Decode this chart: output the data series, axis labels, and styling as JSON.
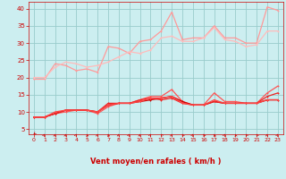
{
  "background_color": "#cceef0",
  "grid_color": "#99cccc",
  "xlabel": "Vent moyen/en rafales ( km/h )",
  "xlabel_color": "#cc0000",
  "tick_color": "#cc0000",
  "yticks": [
    5,
    10,
    15,
    20,
    25,
    30,
    35,
    40
  ],
  "xticks": [
    0,
    1,
    2,
    3,
    4,
    5,
    6,
    7,
    8,
    9,
    10,
    11,
    12,
    13,
    14,
    15,
    16,
    17,
    18,
    19,
    20,
    21,
    22,
    23
  ],
  "ylim": [
    3.5,
    42
  ],
  "xlim": [
    -0.5,
    23.5
  ],
  "series": [
    {
      "color": "#ff9999",
      "lw": 0.9,
      "y": [
        19.5,
        19.5,
        24.0,
        23.5,
        22.0,
        22.5,
        21.5,
        29.0,
        28.5,
        27.0,
        30.5,
        31.0,
        33.5,
        39.0,
        31.0,
        31.5,
        31.5,
        35.0,
        31.5,
        31.5,
        30.0,
        30.0,
        40.5,
        39.5
      ]
    },
    {
      "color": "#ffbbbb",
      "lw": 0.9,
      "y": [
        20.0,
        20.0,
        23.0,
        24.5,
        24.0,
        23.0,
        23.5,
        24.5,
        26.0,
        27.5,
        27.0,
        28.0,
        31.5,
        32.0,
        30.5,
        30.5,
        31.5,
        34.5,
        31.0,
        30.5,
        29.0,
        29.5,
        33.5,
        33.5
      ]
    },
    {
      "color": "#ff5555",
      "lw": 0.9,
      "y": [
        8.5,
        8.5,
        9.5,
        10.0,
        10.5,
        10.5,
        9.5,
        11.5,
        12.5,
        12.5,
        13.5,
        14.5,
        14.5,
        16.5,
        13.0,
        12.0,
        12.0,
        15.5,
        13.0,
        13.0,
        12.5,
        12.5,
        15.5,
        17.5
      ]
    },
    {
      "color": "#cc0000",
      "lw": 1.0,
      "y": [
        8.5,
        8.5,
        9.5,
        10.5,
        10.5,
        10.5,
        10.0,
        12.0,
        12.5,
        12.5,
        13.0,
        13.5,
        14.0,
        14.5,
        13.0,
        12.0,
        12.0,
        13.0,
        12.5,
        12.5,
        12.5,
        12.5,
        13.5,
        13.5
      ]
    },
    {
      "color": "#ee2222",
      "lw": 0.9,
      "y": [
        8.5,
        8.5,
        9.5,
        10.5,
        10.5,
        10.5,
        10.0,
        12.5,
        12.5,
        12.5,
        13.5,
        14.0,
        13.5,
        14.0,
        12.5,
        12.0,
        12.0,
        13.0,
        12.5,
        12.5,
        12.5,
        12.5,
        14.5,
        15.5
      ]
    },
    {
      "color": "#ff4444",
      "lw": 0.9,
      "y": [
        8.5,
        8.5,
        10.0,
        10.5,
        10.5,
        10.5,
        10.0,
        12.0,
        12.5,
        12.5,
        13.0,
        14.0,
        14.0,
        14.5,
        12.5,
        12.0,
        12.0,
        13.5,
        12.5,
        12.5,
        12.5,
        12.5,
        13.5,
        13.5
      ]
    }
  ],
  "arrow_color": "#cc0000",
  "arrow_angles": [
    200,
    10,
    5,
    5,
    10,
    355,
    5,
    355,
    5,
    10,
    5,
    10,
    345,
    5,
    350,
    10,
    350,
    355,
    10,
    355,
    350,
    350,
    5,
    10
  ]
}
